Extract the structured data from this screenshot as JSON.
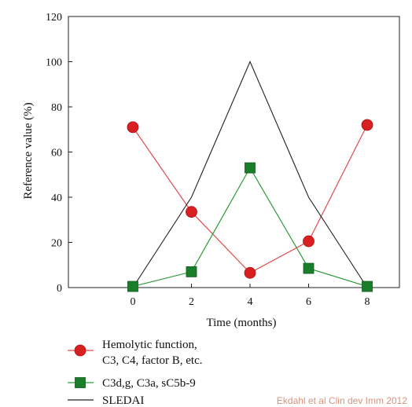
{
  "chart_data": {
    "type": "line",
    "title": "",
    "xlabel": "Time (months)",
    "ylabel": "Reference value (%)",
    "xlim": [
      -2.2,
      9.1
    ],
    "ylim": [
      0,
      120
    ],
    "x_ticks": [
      0,
      2,
      4,
      6,
      8
    ],
    "y_ticks": [
      0,
      20,
      40,
      60,
      80,
      100,
      120
    ],
    "grid": false,
    "legend_position": "bottom",
    "series": [
      {
        "name": "Hemolytic function, C3, C4, factor B, etc.",
        "legend_lines": [
          "Hemolytic function,",
          "C3, C4, factor B, etc."
        ],
        "marker": "circle",
        "line_color": "#e04a4a",
        "marker_color": "#d82020",
        "x": [
          0,
          2,
          4,
          6,
          8
        ],
        "y": [
          71,
          33.5,
          6.5,
          20.5,
          72
        ]
      },
      {
        "name": "C3d,g, C3a, sC5b-9",
        "legend_lines": [
          "C3d,g, C3a, sC5b-9"
        ],
        "marker": "square",
        "line_color": "#2e9a3a",
        "marker_color": "#1a7d2a",
        "x": [
          0,
          2,
          4,
          6,
          8
        ],
        "y": [
          0.5,
          7,
          53,
          8.5,
          0.5
        ]
      },
      {
        "name": "SLEDAI",
        "legend_lines": [
          "SLEDAI"
        ],
        "marker": "none",
        "line_color": "#222222",
        "marker_color": "#222222",
        "x": [
          0,
          2,
          4,
          6,
          8
        ],
        "y": [
          0,
          40,
          100,
          40,
          0
        ]
      }
    ]
  },
  "credit": "Ekdahl et al Clin dev Imm 2012"
}
